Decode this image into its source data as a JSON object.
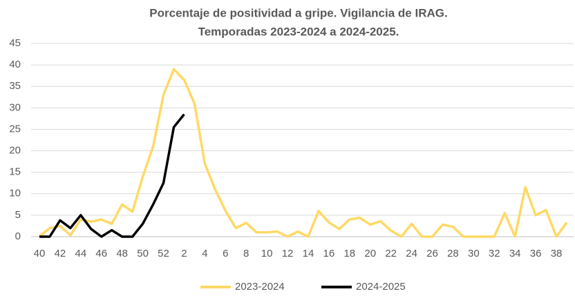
{
  "chart_data": {
    "type": "line",
    "title": [
      "Porcentaje de positividad a gripe. Vigilancia de IRAG.",
      "Temporadas 2023-2024 a 2024-2025."
    ],
    "categories": [
      "40",
      null,
      "42",
      null,
      "44",
      null,
      "46",
      null,
      "48",
      null,
      "50",
      null,
      "52",
      null,
      "2",
      null,
      "4",
      null,
      "6",
      null,
      "8",
      null,
      "10",
      null,
      "12",
      null,
      "14",
      null,
      "16",
      null,
      "18",
      null,
      "20",
      null,
      "22",
      null,
      "24",
      null,
      "26",
      null,
      "28",
      null,
      "30",
      null,
      "32",
      null,
      "34",
      null,
      "36",
      null,
      "38",
      null
    ],
    "series": [
      {
        "name": "2023-2024",
        "color": "#ffd966",
        "values": [
          0,
          2,
          2.5,
          0.3,
          4,
          3.5,
          4,
          3,
          7.5,
          5.8,
          14,
          21,
          33,
          39,
          36.5,
          31,
          17,
          11,
          6,
          2,
          3.2,
          1,
          1,
          1.2,
          0,
          1.2,
          0,
          6,
          3.3,
          1.8,
          4,
          4.4,
          2.8,
          3.6,
          1.4,
          0,
          3,
          0,
          0,
          2.8,
          2.3,
          0,
          0,
          0,
          0,
          5.5,
          0,
          11.5,
          5,
          6.2,
          0,
          3.3
        ]
      },
      {
        "name": "2024-2025",
        "color": "#000000",
        "values": [
          0,
          0,
          3.8,
          2,
          5,
          1.8,
          0,
          1.5,
          0,
          0,
          3,
          7.5,
          12.5,
          25.5,
          28.5,
          null,
          null,
          null,
          null,
          null,
          null,
          null,
          null,
          null,
          null,
          null,
          null,
          null,
          null,
          null,
          null,
          null,
          null,
          null,
          null,
          null,
          null,
          null,
          null,
          null,
          null,
          null,
          null,
          null,
          null,
          null,
          null,
          null,
          null,
          null,
          null,
          null
        ]
      }
    ],
    "ylim": [
      0,
      45
    ],
    "yticks": [
      0,
      5,
      10,
      15,
      20,
      25,
      30,
      35,
      40,
      45
    ],
    "grid": true,
    "legend": "bottom"
  }
}
